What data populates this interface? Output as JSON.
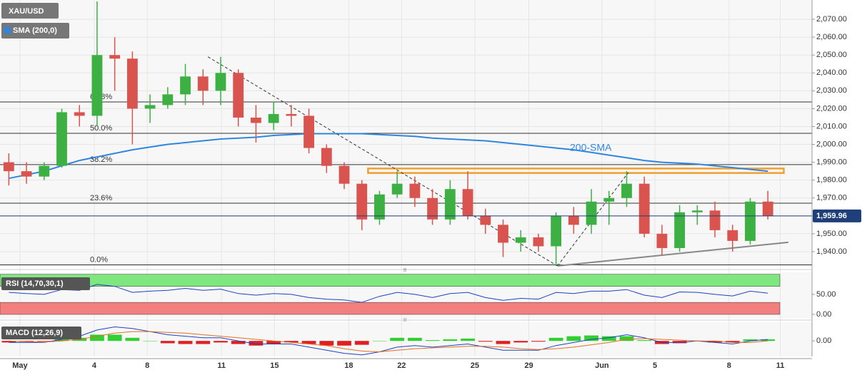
{
  "chart_data": {
    "type": "candlestick",
    "symbol": "XAU/USD",
    "sma_label": "SMA (200,0)",
    "sma_annotation": "200-SMA",
    "rsi_label": "RSI (14,70,30,1)",
    "macd_label": "MACD (12,26,9)",
    "xlim": [
      0,
      46
    ],
    "xticks": [
      {
        "value": 1.13,
        "label": "May"
      },
      {
        "value": 5.34,
        "label": "4"
      },
      {
        "value": 8.34,
        "label": "8"
      },
      {
        "value": 12.55,
        "label": "11"
      },
      {
        "value": 15.55,
        "label": "15"
      },
      {
        "value": 19.76,
        "label": "18"
      },
      {
        "value": 22.75,
        "label": "22"
      },
      {
        "value": 26.9,
        "label": "25"
      },
      {
        "value": 29.96,
        "label": "29"
      },
      {
        "value": 34.1,
        "label": "Jun"
      },
      {
        "value": 37.1,
        "label": "5"
      },
      {
        "value": 41.3,
        "label": "8"
      },
      {
        "value": 44.2,
        "label": "11"
      }
    ],
    "ylim": [
      1932,
      2080.8
    ],
    "yticks": [
      {
        "value": 1940,
        "label": "1,940.00"
      },
      {
        "value": 1950,
        "label": "1,950.00"
      },
      {
        "value": 1960,
        "label": "1,960.00"
      },
      {
        "value": 1970,
        "label": "1,970.00"
      },
      {
        "value": 1980,
        "label": "1,980.00"
      },
      {
        "value": 1990,
        "label": "1,990.00"
      },
      {
        "value": 2000,
        "label": "2,000.00"
      },
      {
        "value": 2010,
        "label": "2,010.00"
      },
      {
        "value": 2020,
        "label": "2,020.00"
      },
      {
        "value": 2030,
        "label": "2,030.00"
      },
      {
        "value": 2040,
        "label": "2,040.00"
      },
      {
        "value": 2050,
        "label": "2,050.00"
      },
      {
        "value": 2060,
        "label": "2,060.00"
      },
      {
        "value": 2070,
        "label": "2,070.00"
      }
    ],
    "grid": true,
    "up_color": "#3cb043",
    "down_color": "#d9534f",
    "candles": {
      "open": [
        1990,
        1985,
        1982,
        1988,
        2018,
        2016,
        2050,
        2048,
        2020,
        2022,
        2028,
        2038,
        2030,
        2040,
        2015,
        2012,
        2017,
        2016,
        1998,
        1988,
        1978,
        1958,
        1972,
        1978,
        1970,
        1958,
        1975,
        1960,
        1955,
        1945,
        1948,
        1943,
        1960,
        1955,
        1968,
        1970,
        1978,
        1950,
        1942,
        1962,
        1963,
        1952,
        1946,
        1968
      ],
      "high": [
        1995,
        1990,
        1990,
        2020,
        2022,
        2080,
        2060,
        2052,
        2028,
        2032,
        2045,
        2042,
        2049,
        2042,
        2022,
        2024,
        2022,
        2020,
        2000,
        1990,
        1980,
        1974,
        1985,
        1982,
        1975,
        1980,
        1985,
        1964,
        1958,
        1952,
        1950,
        1962,
        1965,
        1975,
        1974,
        1985,
        1982,
        1955,
        1966,
        1966,
        1968,
        1955,
        1970,
        1974
      ],
      "low": [
        1977,
        1978,
        1980,
        1987,
        2010,
        2010,
        2030,
        2000,
        2012,
        2020,
        2022,
        2022,
        2022,
        2010,
        2001,
        2008,
        2010,
        1995,
        1984,
        1975,
        1952,
        1955,
        1970,
        1965,
        1955,
        1955,
        1958,
        1950,
        1937,
        1940,
        1940,
        1932,
        1950,
        1950,
        1955,
        1965,
        1948,
        1938,
        1940,
        1955,
        1948,
        1940,
        1944,
        1958
      ],
      "close": [
        1985,
        1982,
        1988,
        2018,
        2016,
        2050,
        2048,
        2020,
        2022,
        2028,
        2038,
        2030,
        2040,
        2015,
        2012,
        2017,
        2016,
        1998,
        1988,
        1978,
        1958,
        1972,
        1978,
        1970,
        1958,
        1975,
        1960,
        1955,
        1945,
        1948,
        1943,
        1960,
        1955,
        1968,
        1970,
        1978,
        1950,
        1942,
        1962,
        1963,
        1952,
        1946,
        1968,
        1960
      ]
    },
    "sma": {
      "name": "SMA (200,0)",
      "color": "#2f86e0",
      "values": [
        1981,
        1983,
        1985,
        1988,
        1991,
        1993,
        1995,
        1997,
        1998.5,
        2000,
        2001,
        2002,
        2003,
        2003.5,
        2004,
        2005,
        2005.5,
        2006,
        2006,
        2006,
        2006,
        2005.5,
        2005,
        2004.5,
        2003.5,
        2003,
        2002.5,
        2002,
        2001,
        2000,
        1999,
        1998,
        1997,
        1995.5,
        1994,
        1992.5,
        1991,
        1990,
        1989.5,
        1989,
        1988,
        1987,
        1986,
        1985
      ]
    },
    "fib_levels": [
      {
        "value": 2023.75,
        "label": "61.8%"
      },
      {
        "value": 2006.2,
        "label": "50.0%"
      },
      {
        "value": 1988.7,
        "label": "38.2%"
      },
      {
        "value": 1967.1,
        "label": "23.6%"
      },
      {
        "value": 1932.6,
        "label": "0.0%"
      }
    ],
    "resistance_zone": {
      "x": [
        20.85,
        44.4
      ],
      "y": [
        1984,
        1986.5
      ],
      "color": "#f0a030"
    },
    "trendlines": [
      {
        "x": [
          11.78,
          31.58
        ],
        "y": [
          2049,
          1932
        ],
        "style": "dashed",
        "color": "#333333"
      },
      {
        "x": [
          31.58,
          35.6
        ],
        "y": [
          1932,
          1984.3
        ],
        "style": "dashed",
        "color": "#333333"
      },
      {
        "x": [
          31.58,
          44.66
        ],
        "y": [
          1932,
          1945.2
        ],
        "style": "solid",
        "color": "#888888"
      }
    ],
    "last_price": {
      "value": 1959.96,
      "label": "1,959.96",
      "color": "#1f3f7a"
    },
    "rsi": {
      "ylim": [
        -10.7,
        105
      ],
      "yticks": [
        {
          "value": 50,
          "label": "50.00"
        },
        {
          "value": 0,
          "label": "0.00"
        }
      ],
      "overbought_zone": [
        70,
        100
      ],
      "oversold_zone": [
        0,
        30
      ],
      "overbought_color": "#7ee87e",
      "oversold_color": "#f47f7f",
      "color": "#2040c0",
      "values": [
        55,
        52,
        50,
        62,
        60,
        75,
        70,
        55,
        58,
        60,
        65,
        60,
        63,
        52,
        48,
        52,
        50,
        42,
        38,
        36,
        30,
        45,
        55,
        50,
        42,
        52,
        55,
        42,
        35,
        40,
        38,
        55,
        52,
        58,
        58,
        62,
        48,
        42,
        56,
        55,
        50,
        46,
        58,
        53
      ]
    },
    "macd": {
      "ylim": [
        -10,
        12
      ],
      "yticks": [
        {
          "value": 0,
          "label": "0.00"
        }
      ],
      "macd_color": "#2040c0",
      "signal_color": "#e07020",
      "hist_up_color": "#30d030",
      "hist_down_color": "#e02020",
      "macd_values": [
        -1,
        -1,
        -1,
        1,
        3,
        7,
        9,
        8,
        6,
        4,
        3,
        2,
        2,
        0,
        -2,
        -2,
        -2,
        -4,
        -6,
        -8,
        -9,
        -7,
        -4,
        -3,
        -4,
        -3,
        -2,
        -4,
        -6,
        -6,
        -6,
        -3,
        -1,
        1,
        2,
        4,
        2,
        -1,
        -1,
        0,
        -1,
        -2,
        0,
        1
      ],
      "signal_values": [
        0,
        -0.5,
        -0.7,
        0,
        1,
        3,
        5,
        6,
        6,
        5.5,
        5,
        4,
        3,
        2,
        1,
        0,
        -1,
        -2,
        -3,
        -5,
        -6.5,
        -7,
        -6,
        -5,
        -4.5,
        -4,
        -3.5,
        -3.5,
        -4,
        -5,
        -5.5,
        -5,
        -4,
        -2.5,
        -1,
        1,
        1.5,
        1,
        0.5,
        0,
        0,
        -1,
        -1,
        0
      ],
      "hist_values": [
        -1,
        -0.5,
        -0.3,
        1,
        2,
        4,
        4,
        2,
        0,
        -1.5,
        -2,
        -2,
        -1,
        -2,
        -3,
        -2,
        -1,
        -2,
        -3,
        -3,
        -2.5,
        0,
        2,
        2,
        0.5,
        1,
        1.5,
        -0.5,
        -2,
        -1,
        -0.5,
        2,
        3,
        3.5,
        3,
        3,
        0.5,
        -2,
        -1.5,
        0,
        -1,
        -1,
        1,
        1
      ]
    }
  }
}
